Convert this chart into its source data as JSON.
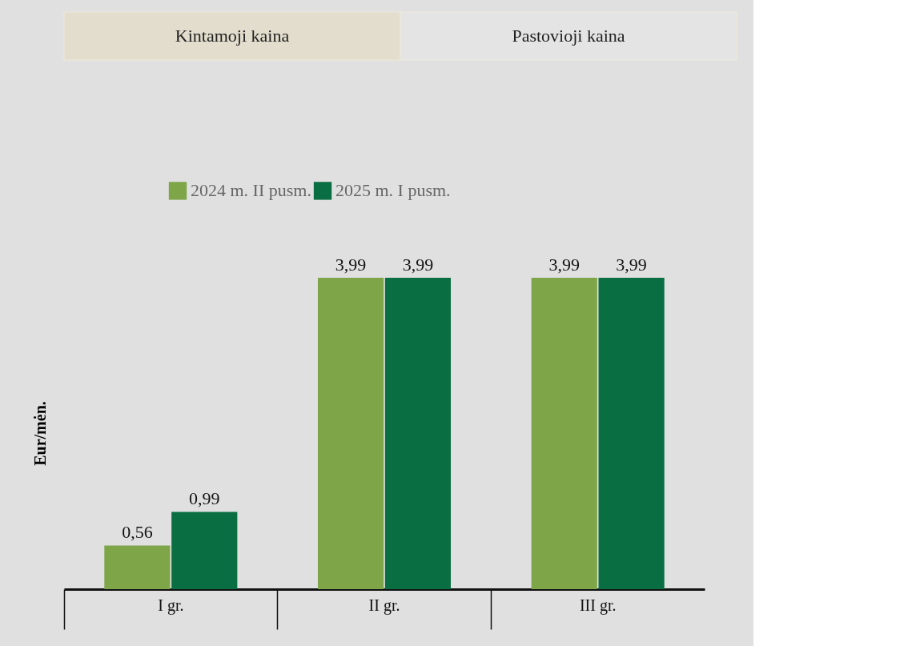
{
  "chart_data": {
    "type": "bar",
    "ylabel": "Eur/mėn.",
    "categories": [
      "I gr.",
      "II gr.",
      "III gr."
    ],
    "series": [
      {
        "name": "2024 m. II pusm.",
        "color": "#7ea648",
        "values": [
          0.56,
          3.99,
          3.99
        ],
        "value_labels": [
          "0,56",
          "3,99",
          "3,99"
        ]
      },
      {
        "name": "2025 m. I pusm.",
        "color": "#0a6e43",
        "values": [
          0.99,
          3.99,
          3.99
        ],
        "value_labels": [
          "0,99",
          "3,99",
          "3,99"
        ]
      }
    ],
    "legend": "top",
    "annotations": [
      "Kintamoji kaina",
      "Pastovioji kaina"
    ]
  }
}
